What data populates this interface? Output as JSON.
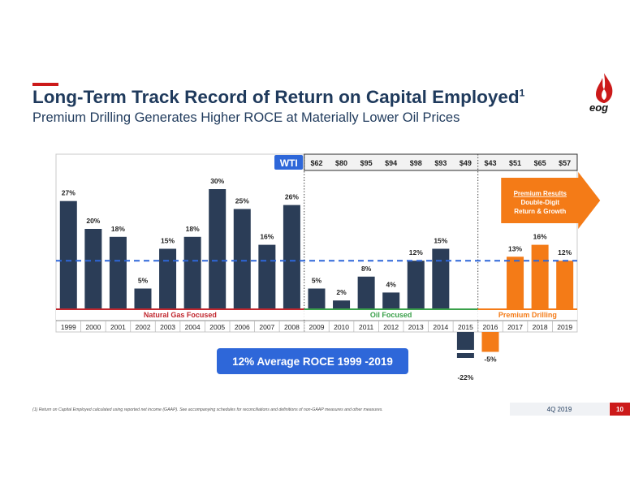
{
  "header": {
    "title": "Long-Term Track Record of Return on Capital Employed",
    "title_sup": "1",
    "subtitle": "Premium Drilling Generates Higher ROCE at Materially Lower Oil Prices",
    "logo_text": "eog"
  },
  "wti": {
    "label": "WTI",
    "prices": [
      "$62",
      "$80",
      "$95",
      "$94",
      "$98",
      "$93",
      "$49",
      "$43",
      "$51",
      "$65",
      "$57"
    ]
  },
  "callout": {
    "line1": "Premium Results",
    "line2": "Double-Digit",
    "line3": "Return & Growth"
  },
  "average_box": "12% Average ROCE 1999 -2019",
  "footnote": "(1)  Return on Capital Employed calculated using reported net income (GAAP). See accompanying schedules for reconciliations and definitions of non-GAAP measures and other measures.",
  "footer": {
    "quarter": "4Q 2019",
    "page": "10"
  },
  "colors": {
    "navy": "#2b3d57",
    "orange": "#f47b17",
    "average_line": "#2e67d9",
    "natural_gas": "#c0262d",
    "oil": "#3aa04a",
    "premium": "#f47b17",
    "wti_box": "#2e67d9",
    "title": "#1f3a5c"
  },
  "chart_data": {
    "type": "bar",
    "categories": [
      "1999",
      "2000",
      "2001",
      "2002",
      "2003",
      "2004",
      "2005",
      "2006",
      "2007",
      "2008",
      "2009",
      "2010",
      "2011",
      "2012",
      "2013",
      "2014",
      "2015",
      "2016",
      "2017",
      "2018",
      "2019"
    ],
    "values": [
      27,
      20,
      18,
      5,
      15,
      18,
      30,
      25,
      16,
      26,
      5,
      2,
      8,
      4,
      12,
      15,
      -22,
      -5,
      13,
      16,
      12
    ],
    "value_labels": [
      "27%",
      "20%",
      "18%",
      "5%",
      "15%",
      "18%",
      "30%",
      "25%",
      "16%",
      "26%",
      "5%",
      "2%",
      "8%",
      "4%",
      "12%",
      "15%",
      "-22%",
      "-5%",
      "13%",
      "16%",
      "12%"
    ],
    "bar_colors": [
      "navy",
      "navy",
      "navy",
      "navy",
      "navy",
      "navy",
      "navy",
      "navy",
      "navy",
      "navy",
      "navy",
      "navy",
      "navy",
      "navy",
      "navy",
      "navy",
      "navy",
      "orange",
      "orange",
      "orange",
      "orange"
    ],
    "average": 12,
    "axis_break": {
      "category": "2015"
    },
    "periods": [
      {
        "label": "Natural Gas Focused",
        "from": "1999",
        "to": "2008",
        "color": "natural_gas"
      },
      {
        "label": "Oil Focused",
        "from": "2009",
        "to": "2015",
        "color": "oil"
      },
      {
        "label": "Premium Drilling",
        "from": "2016",
        "to": "2019",
        "color": "premium"
      }
    ],
    "wti_from": "2009"
  }
}
